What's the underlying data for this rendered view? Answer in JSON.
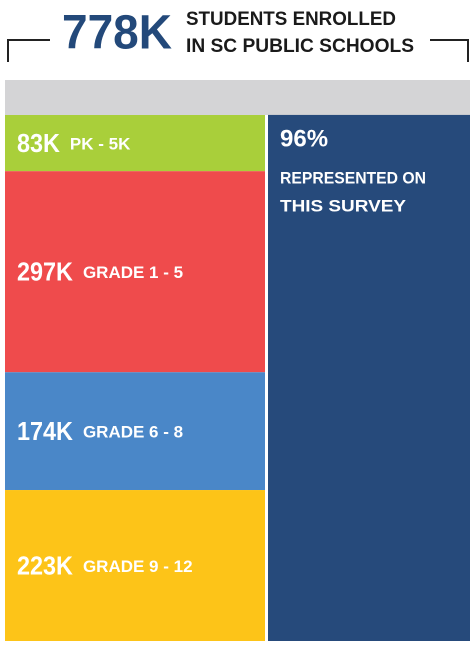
{
  "header": {
    "total": {
      "value": 778000,
      "label": "778K"
    },
    "caption": [
      "STUDENTS ENROLLED",
      "IN SC PUBLIC SCHOOLS"
    ],
    "color": "#23497a"
  },
  "chart_data": {
    "type": "stacked-bar",
    "categories": [
      "PK - 5K",
      "GRADE 1 - 5",
      "GRADE 6 - 8",
      "GRADE 9 - 12"
    ],
    "values": [
      83000,
      297000,
      174000,
      223000
    ],
    "value_labels": [
      "83K",
      "297K",
      "174K",
      "223K"
    ],
    "colors": [
      "#a9cf3a",
      "#ef4b4c",
      "#4a87c8",
      "#fdc418"
    ]
  },
  "survey": {
    "value": 96,
    "label": "96%",
    "caption": [
      "REPRESENTED ON",
      "THIS SURVEY"
    ],
    "color": "#264a7b"
  }
}
